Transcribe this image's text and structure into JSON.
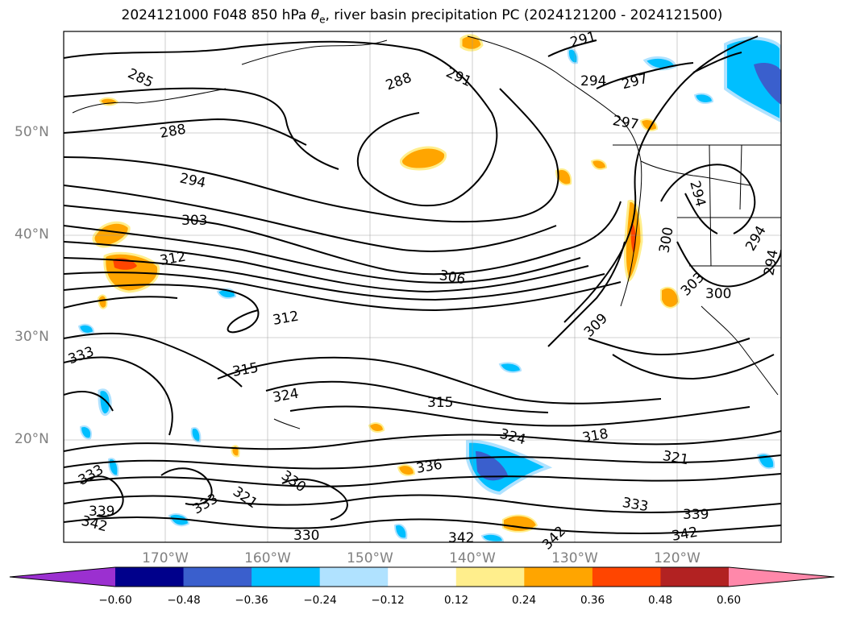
{
  "title_main": "2024121000 F048 850 hPa ",
  "title_symbol": "θ",
  "title_sub": "e",
  "title_rest": ", river basin precipitation PC (2024121200 - 2024121500)",
  "lat_labels": [
    "50°N",
    "40°N",
    "30°N",
    "20°N"
  ],
  "lon_labels": [
    "170°W",
    "160°W",
    "150°W",
    "140°W",
    "130°W",
    "120°W"
  ],
  "colorbar": {
    "ticks": [
      "−0.60",
      "−0.48",
      "−0.36",
      "−0.24",
      "−0.12",
      "0.12",
      "0.24",
      "0.36",
      "0.48",
      "0.60"
    ],
    "under_color": "#9b30d0",
    "over_color": "#ff88aa",
    "colors": [
      "#9b30d0",
      "#00008b",
      "#3a5fcd",
      "#00bfff",
      "#b0e2ff",
      "#ffffff",
      "#ffee8c",
      "#ffa500",
      "#ff4500",
      "#b22222",
      "#ff88aa"
    ]
  },
  "contour_labels": [
    "285",
    "288",
    "288",
    "291",
    "291",
    "294",
    "294",
    "297",
    "297",
    "294",
    "303",
    "312",
    "306",
    "312",
    "300",
    "303",
    "300",
    "309",
    "315",
    "315",
    "324",
    "318",
    "324",
    "321",
    "333",
    "336",
    "333",
    "330",
    "321",
    "333",
    "333",
    "330",
    "339",
    "339",
    "342",
    "342",
    "342",
    "342",
    "294",
    "294"
  ]
}
